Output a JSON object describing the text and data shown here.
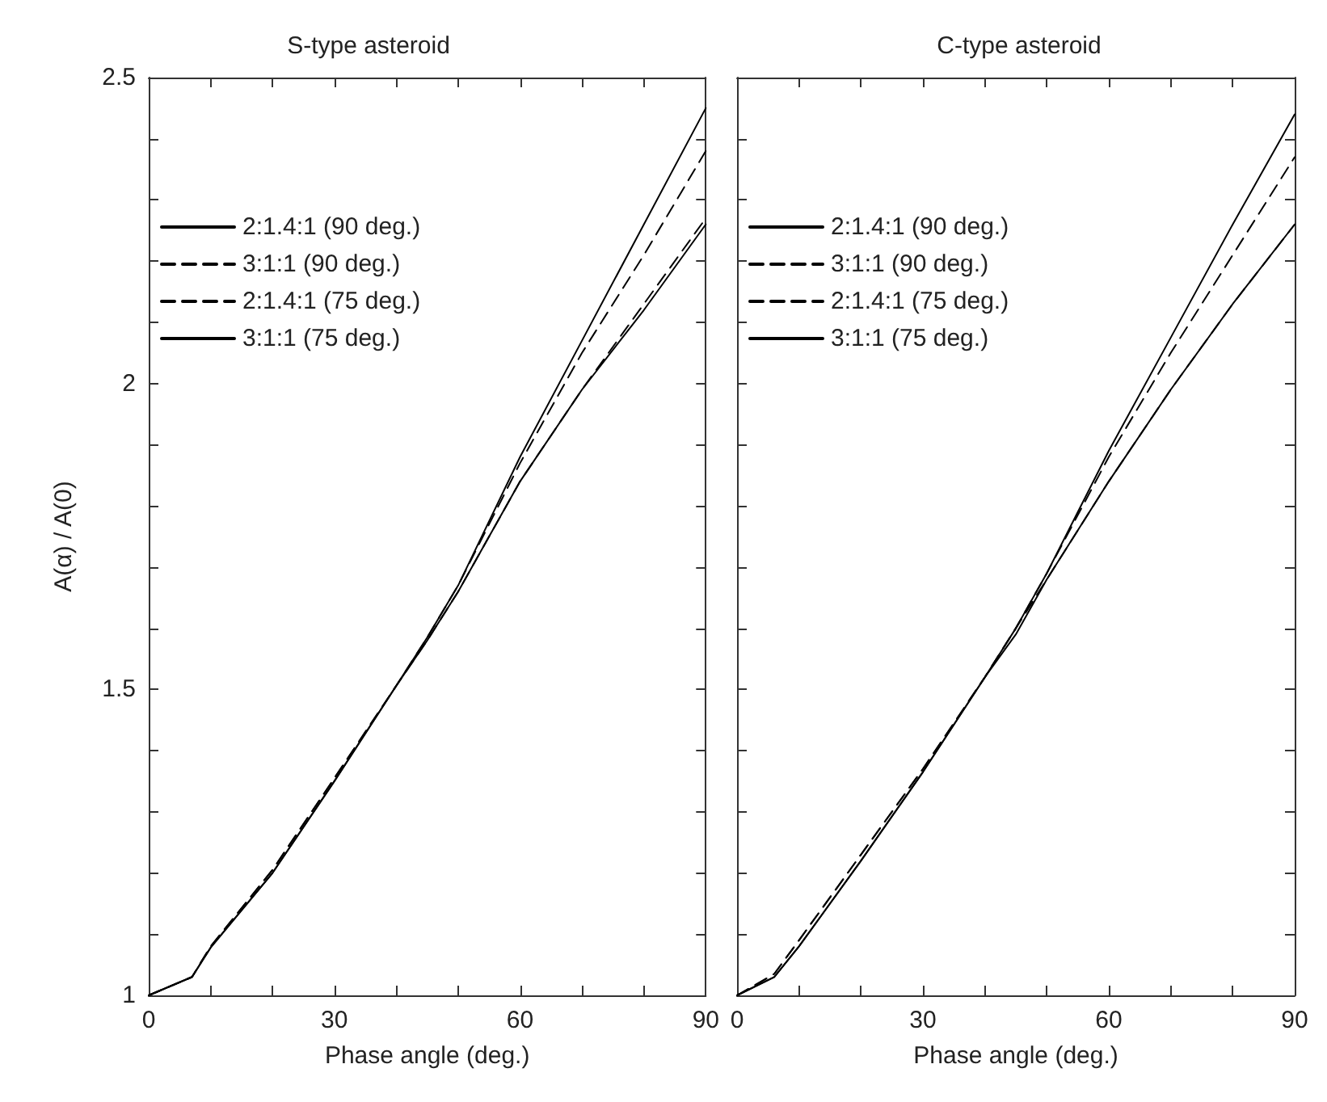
{
  "chart_data": [
    {
      "type": "line",
      "title": "S-type asteroid",
      "xlabel": "Phase angle (deg.)",
      "ylabel": "A(α) / A(0)",
      "x": [
        0,
        7,
        10,
        20,
        30,
        40,
        45,
        50,
        60,
        70,
        80,
        90
      ],
      "xlim": [
        0,
        90
      ],
      "ylim": [
        1,
        2.5
      ],
      "xticks": [
        0,
        {
          "value": 10,
          "label": null
        },
        {
          "value": 20,
          "label": null
        },
        30,
        {
          "value": 40,
          "label": null
        },
        {
          "value": 50,
          "label": null
        },
        60,
        {
          "value": 70,
          "label": null
        },
        {
          "value": 80,
          "label": null
        },
        90
      ],
      "yticks": [
        1,
        {
          "value": 1.1,
          "label": null
        },
        {
          "value": 1.2,
          "label": null
        },
        {
          "value": 1.3,
          "label": null
        },
        {
          "value": 1.4,
          "label": null
        },
        1.5,
        {
          "value": 1.6,
          "label": null
        },
        {
          "value": 1.7,
          "label": null
        },
        {
          "value": 1.8,
          "label": null
        },
        {
          "value": 1.9,
          "label": null
        },
        2,
        {
          "value": 2.1,
          "label": null
        },
        {
          "value": 2.2,
          "label": null
        },
        {
          "value": 2.3,
          "label": null
        },
        {
          "value": 2.4,
          "label": null
        },
        2.5
      ],
      "grid": false,
      "legend": "top left",
      "marker": "none",
      "series": [
        {
          "name": "2:1.4:1 (90 deg.)",
          "color": "#000000",
          "line_style": "solid",
          "values": [
            1,
            1.03,
            1.078,
            1.2,
            1.35,
            1.506,
            1.585,
            1.67,
            1.88,
            2.07,
            2.26,
            2.45
          ]
        },
        {
          "name": "3:1:1 (90 deg.)",
          "color": "#000000",
          "line_style": "dashed",
          "values": [
            1,
            1.03,
            1.08,
            1.205,
            1.355,
            1.506,
            1.58,
            1.66,
            1.84,
            1.99,
            2.13,
            2.27
          ]
        },
        {
          "name": "2:1.4:1 (75 deg.)",
          "color": "#000000",
          "line_style": "dashed",
          "values": [
            1,
            1.03,
            1.08,
            1.205,
            1.355,
            1.506,
            1.585,
            1.67,
            1.87,
            2.05,
            2.21,
            2.38
          ]
        },
        {
          "name": "3:1:1 (75 deg.)",
          "color": "#000000",
          "line_style": "solid",
          "values": [
            1,
            1.03,
            1.078,
            1.2,
            1.35,
            1.506,
            1.58,
            1.66,
            1.84,
            1.99,
            2.12,
            2.26
          ]
        }
      ]
    },
    {
      "type": "line",
      "title": "C-type asteroid",
      "xlabel": "Phase angle (deg.)",
      "x": [
        0,
        6,
        10,
        20,
        30,
        40,
        45,
        50,
        60,
        70,
        80,
        90
      ],
      "xlim": [
        0,
        90
      ],
      "ylim": [
        1,
        2.5
      ],
      "xticks": [
        0,
        {
          "value": 10,
          "label": null
        },
        {
          "value": 20,
          "label": null
        },
        30,
        {
          "value": 40,
          "label": null
        },
        {
          "value": 50,
          "label": null
        },
        60,
        {
          "value": 70,
          "label": null
        },
        {
          "value": 80,
          "label": null
        },
        90
      ],
      "yticks": [
        1,
        {
          "value": 1.1,
          "label": null
        },
        {
          "value": 1.2,
          "label": null
        },
        {
          "value": 1.3,
          "label": null
        },
        {
          "value": 1.4,
          "label": null
        },
        1.5,
        {
          "value": 1.6,
          "label": null
        },
        {
          "value": 1.7,
          "label": null
        },
        {
          "value": 1.8,
          "label": null
        },
        {
          "value": 1.9,
          "label": null
        },
        2,
        {
          "value": 2.1,
          "label": null
        },
        {
          "value": 2.2,
          "label": null
        },
        {
          "value": 2.3,
          "label": null
        },
        {
          "value": 2.4,
          "label": null
        },
        2.5
      ],
      "tick_labels": "x",
      "grid": false,
      "legend": "top left",
      "marker": "none",
      "series": [
        {
          "name": "2:1.4:1 (90 deg.)",
          "color": "#000000",
          "line_style": "solid",
          "values": [
            1,
            1.03,
            1.08,
            1.22,
            1.365,
            1.52,
            1.6,
            1.69,
            1.89,
            2.075,
            2.26,
            2.44
          ]
        },
        {
          "name": "3:1:1 (90 deg.)",
          "color": "#000000",
          "line_style": "dashed",
          "values": [
            1,
            1.035,
            1.09,
            1.23,
            1.37,
            1.52,
            1.6,
            1.68,
            1.84,
            1.99,
            2.13,
            2.26
          ]
        },
        {
          "name": "2:1.4:1 (75 deg.)",
          "color": "#000000",
          "line_style": "dashed",
          "values": [
            1,
            1.035,
            1.09,
            1.23,
            1.37,
            1.52,
            1.6,
            1.69,
            1.88,
            2.05,
            2.21,
            2.37
          ]
        },
        {
          "name": "3:1:1 (75 deg.)",
          "color": "#000000",
          "line_style": "solid",
          "values": [
            1,
            1.03,
            1.08,
            1.22,
            1.365,
            1.52,
            1.59,
            1.68,
            1.84,
            1.99,
            2.13,
            2.26
          ]
        }
      ]
    }
  ]
}
